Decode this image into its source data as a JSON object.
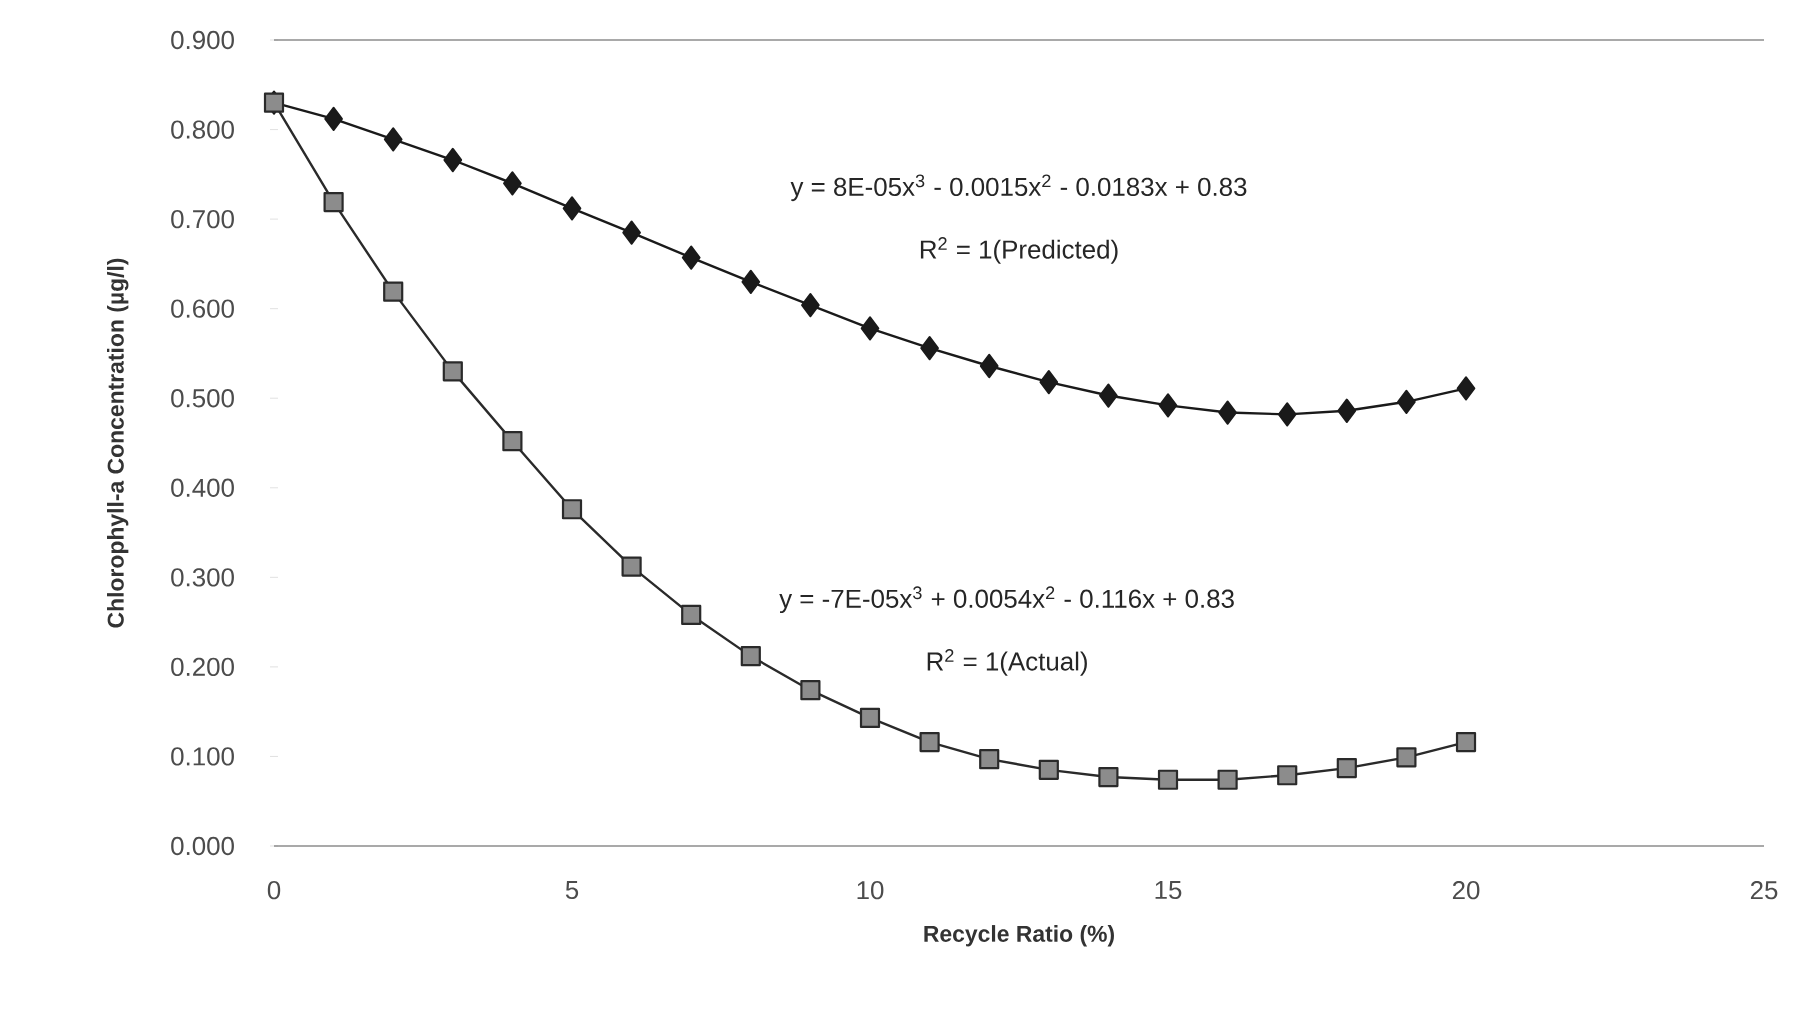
{
  "chart_data": {
    "type": "line",
    "xlabel": "Recycle Ratio (%)",
    "ylabel": "Chlorophyll-a Concentration (µg/l)",
    "x": [
      0,
      1,
      2,
      3,
      4,
      5,
      6,
      7,
      8,
      9,
      10,
      11,
      12,
      13,
      14,
      15,
      16,
      17,
      18,
      19,
      20
    ],
    "xlim": [
      0,
      25
    ],
    "xticks": [
      0,
      5,
      10,
      15,
      20,
      25
    ],
    "ylim": [
      0,
      0.9
    ],
    "yticks": [
      {
        "value": 0,
        "label": "0.000"
      },
      {
        "value": 0.1,
        "label": "0.100"
      },
      {
        "value": 0.2,
        "label": "0.200"
      },
      {
        "value": 0.3,
        "label": "0.300"
      },
      {
        "value": 0.4,
        "label": "0.400"
      },
      {
        "value": 0.5,
        "label": "0.500"
      },
      {
        "value": 0.6,
        "label": "0.600"
      },
      {
        "value": 0.7,
        "label": "0.700"
      },
      {
        "value": 0.8,
        "label": "0.800"
      },
      {
        "value": 0.9,
        "label": "0.900"
      }
    ],
    "series": [
      {
        "color": "#1a1a1a",
        "marker": "diamond",
        "values": [
          0.83,
          0.812,
          0.789,
          0.766,
          0.74,
          0.712,
          0.685,
          0.657,
          0.63,
          0.604,
          0.578,
          0.556,
          0.536,
          0.518,
          0.503,
          0.492,
          0.484,
          0.482,
          0.486,
          0.496,
          0.511
        ]
      },
      {
        "color": "#2a2a2a",
        "marker": "square",
        "values": [
          0.83,
          0.719,
          0.619,
          0.53,
          0.452,
          0.376,
          0.312,
          0.258,
          0.212,
          0.174,
          0.143,
          0.116,
          0.097,
          0.085,
          0.077,
          0.074,
          0.074,
          0.079,
          0.087,
          0.099,
          0.116
        ]
      }
    ],
    "annotations": [
      "y = 8E-05x$^{3}$ - 0.0015x$^{2}$ - 0.0183x + 0.83",
      "R$^{2}$ = 1(Predicted)",
      "y = -7E-05x$^{3}$ + 0.0054x$^{2}$ - 0.116x + 0.83",
      "R$^{2}$ = 1(Actual)"
    ]
  }
}
